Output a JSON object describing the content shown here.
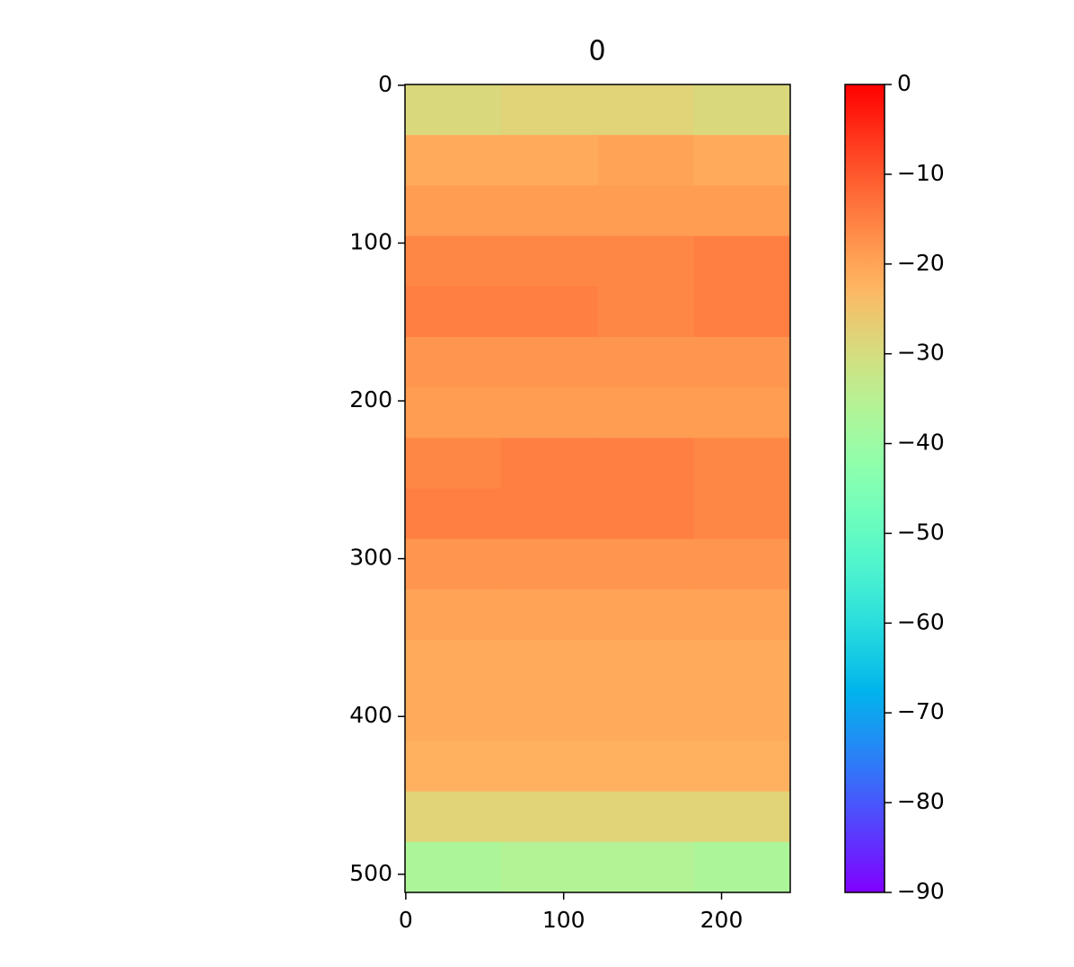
{
  "chart_data": {
    "type": "heatmap",
    "title": "0",
    "xbins": [
      -0.5,
      60.5,
      121.5,
      182.5,
      243.5
    ],
    "ybins": [
      -0.5,
      31.5,
      63.5,
      95.5,
      127.5,
      159.5,
      191.5,
      223.5,
      255.5,
      287.5,
      319.5,
      351.5,
      383.5,
      415.5,
      447.5,
      479.5,
      511.5
    ],
    "z": [
      [
        -29,
        -28,
        -28,
        -29
      ],
      [
        -21,
        -21,
        -20,
        -21
      ],
      [
        -19,
        -19,
        -19,
        -19
      ],
      [
        -16,
        -16,
        -16,
        -15
      ],
      [
        -15,
        -15,
        -16,
        -15
      ],
      [
        -18,
        -18,
        -18,
        -18
      ],
      [
        -19,
        -19,
        -19,
        -19
      ],
      [
        -16,
        -15,
        -15,
        -16
      ],
      [
        -15,
        -15,
        -15,
        -16
      ],
      [
        -18,
        -18,
        -18,
        -18
      ],
      [
        -20,
        -20,
        -20,
        -20
      ],
      [
        -21,
        -21,
        -21,
        -21
      ],
      [
        -21,
        -21,
        -21,
        -21
      ],
      [
        -22,
        -22,
        -22,
        -22
      ],
      [
        -28,
        -28,
        -28,
        -28
      ],
      [
        -37,
        -36,
        -36,
        -37
      ]
    ],
    "xlim": [
      -0.5,
      243.5
    ],
    "ylim": [
      511.5,
      -0.5
    ],
    "xticks": [
      0,
      100,
      200
    ],
    "yticks": [
      0,
      100,
      200,
      300,
      400,
      500
    ],
    "colormap": "rainbow",
    "clim": [
      -90,
      0
    ],
    "cticks": [
      {
        "value": 0,
        "label": "0"
      },
      {
        "value": -10,
        "label": "−10"
      },
      {
        "value": -20,
        "label": "−20"
      },
      {
        "value": -30,
        "label": "−30"
      },
      {
        "value": -40,
        "label": "−40"
      },
      {
        "value": -50,
        "label": "−50"
      },
      {
        "value": -60,
        "label": "−60"
      },
      {
        "value": -70,
        "label": "−70"
      },
      {
        "value": -80,
        "label": "−80"
      },
      {
        "value": -90,
        "label": "−90"
      }
    ]
  }
}
